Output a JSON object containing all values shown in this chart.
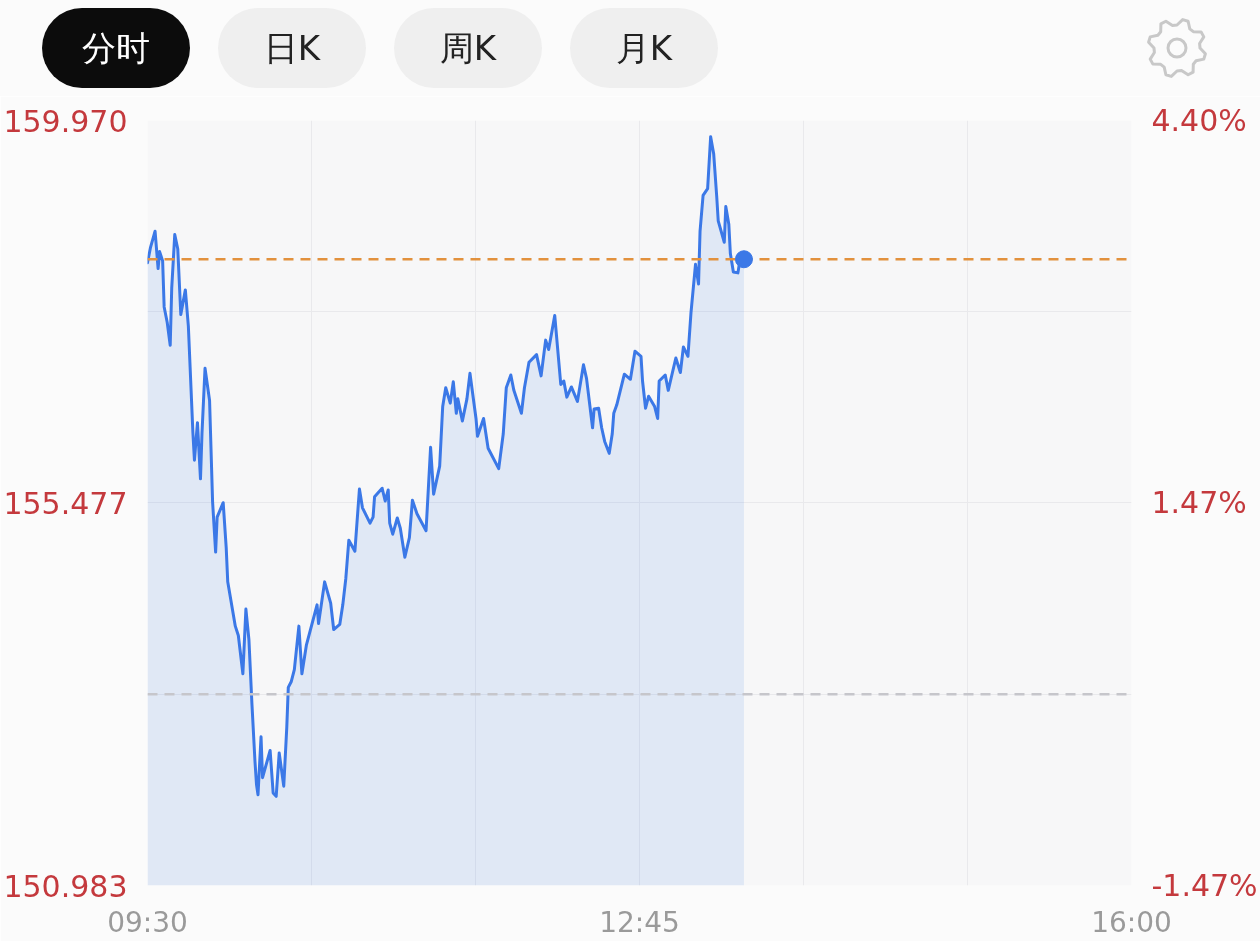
{
  "chart_data": {
    "type": "area",
    "annotations": [
      "分时",
      "日K",
      "周K",
      "月K"
    ],
    "x": [
      9.5,
      9.52,
      9.55,
      9.57,
      9.58,
      9.6,
      9.61,
      9.63,
      9.65,
      9.66,
      9.68,
      9.7,
      9.72,
      9.75,
      9.77,
      9.8,
      9.81,
      9.83,
      9.85,
      9.86,
      9.88,
      9.91,
      9.93,
      9.95,
      9.96,
      10.0,
      10.02,
      10.03,
      10.08,
      10.1,
      10.13,
      10.15,
      10.17,
      10.19,
      10.21,
      10.22,
      10.23,
      10.25,
      10.26,
      10.31,
      10.33,
      10.35,
      10.37,
      10.4,
      10.42,
      10.43,
      10.45,
      10.47,
      10.5,
      10.52,
      10.55,
      10.62,
      10.63,
      10.67,
      10.71,
      10.73,
      10.77,
      10.79,
      10.81,
      10.83,
      10.87,
      10.9,
      10.92,
      10.97,
      10.99,
      11.0,
      11.05,
      11.07,
      11.09,
      11.1,
      11.12,
      11.15,
      11.17,
      11.2,
      11.23,
      11.25,
      11.28,
      11.34,
      11.37,
      11.39,
      11.43,
      11.45,
      11.47,
      11.5,
      11.52,
      11.54,
      11.55,
      11.58,
      11.61,
      11.63,
      11.67,
      11.68,
      11.72,
      11.75,
      11.82,
      11.85,
      11.87,
      11.9,
      11.92,
      11.97,
      11.99,
      12.02,
      12.07,
      12.1,
      12.13,
      12.15,
      12.19,
      12.23,
      12.25,
      12.27,
      12.3,
      12.34,
      12.38,
      12.4,
      12.44,
      12.45,
      12.48,
      12.5,
      12.52,
      12.55,
      12.57,
      12.58,
      12.6,
      12.65,
      12.69,
      12.72,
      12.76,
      12.77,
      12.79,
      12.81,
      12.85,
      12.87,
      12.88,
      12.92,
      12.94,
      12.99,
      13.02,
      13.04,
      13.07,
      13.09,
      13.12,
      13.14,
      13.15,
      13.17,
      13.2,
      13.22,
      13.24,
      13.26,
      13.27,
      13.31,
      13.32,
      13.34,
      13.35,
      13.37,
      13.4,
      13.41,
      13.44
    ],
    "series": [
      {
        "color": "#3b78e7",
        "values": [
          158.3,
          158.48,
          158.67,
          158.23,
          158.43,
          158.32,
          157.78,
          157.6,
          157.33,
          158.0,
          158.63,
          158.46,
          157.69,
          157.98,
          157.55,
          156.3,
          155.98,
          156.42,
          155.76,
          156.3,
          157.06,
          156.68,
          155.49,
          154.9,
          155.31,
          155.48,
          154.95,
          154.55,
          154.03,
          153.92,
          153.47,
          154.23,
          153.87,
          153.11,
          152.44,
          152.17,
          152.05,
          152.73,
          152.25,
          152.57,
          152.07,
          152.03,
          152.54,
          152.15,
          152.84,
          153.31,
          153.38,
          153.52,
          154.03,
          153.47,
          153.81,
          154.28,
          154.06,
          154.55,
          154.3,
          153.99,
          154.05,
          154.28,
          154.59,
          155.04,
          154.91,
          155.64,
          155.42,
          155.24,
          155.31,
          155.55,
          155.65,
          155.5,
          155.63,
          155.24,
          155.11,
          155.3,
          155.18,
          154.84,
          155.07,
          155.51,
          155.35,
          155.15,
          156.13,
          155.58,
          155.91,
          156.61,
          156.83,
          156.65,
          156.9,
          156.53,
          156.7,
          156.44,
          156.7,
          157.0,
          156.47,
          156.26,
          156.47,
          156.12,
          155.88,
          156.29,
          156.83,
          156.98,
          156.8,
          156.53,
          156.83,
          157.13,
          157.22,
          156.97,
          157.39,
          157.28,
          157.68,
          156.87,
          156.91,
          156.72,
          156.84,
          156.67,
          157.1,
          156.94,
          156.36,
          156.58,
          156.59,
          156.36,
          156.2,
          156.06,
          156.29,
          156.53,
          156.63,
          156.99,
          156.93,
          157.26,
          157.2,
          156.91,
          156.59,
          156.73,
          156.61,
          156.47,
          156.91,
          156.98,
          156.8,
          157.18,
          157.01,
          157.31,
          157.2,
          157.71,
          158.28,
          158.05,
          158.67,
          159.09,
          159.17,
          159.78,
          159.58,
          159.08,
          158.79,
          158.54,
          158.96,
          158.75,
          158.41,
          158.19,
          158.18,
          158.29,
          158.34
        ]
      },
      {
        "type": "scatter",
        "marker": "circle",
        "color": "#3b78e7",
        "x": [
          13.44
        ],
        "values": [
          158.34
        ]
      }
    ],
    "xlim": [
      9.5,
      16
    ],
    "xticks": [
      {
        "value": 9.5,
        "label": "09:30"
      },
      {
        "value": 10.583,
        "label": null
      },
      {
        "value": 11.667,
        "label": null
      },
      {
        "value": 12.75,
        "label": "12:45"
      },
      {
        "value": 13.833,
        "label": null
      },
      {
        "value": 14.917,
        "label": null
      },
      {
        "value": 16,
        "label": "16:00"
      }
    ],
    "ylim": [
      150.983,
      159.97
    ],
    "yticks": [
      {
        "value": 159.97,
        "label": "159.970"
      },
      {
        "value": 157.723,
        "label": null
      },
      {
        "value": 155.477,
        "label": "155.477"
      },
      {
        "value": 153.23,
        "label": null
      },
      {
        "value": 150.983,
        "label": "150.983"
      }
    ],
    "y2lim": [
      -1.47,
      4.4
    ],
    "y2ticks": [
      {
        "value": 4.4,
        "label": "4.40%"
      },
      {
        "value": 1.47,
        "label": "1.47%"
      },
      {
        "value": -1.47,
        "label": "-1.47%"
      }
    ],
    "ref_lines": [
      {
        "axis": "y",
        "value": 158.34,
        "color": "#e2913d",
        "line_style": "dashed"
      },
      {
        "axis": "y",
        "value": 153.23,
        "color": "#c6c6cb",
        "line_style": "dashed"
      }
    ],
    "grid": true
  }
}
